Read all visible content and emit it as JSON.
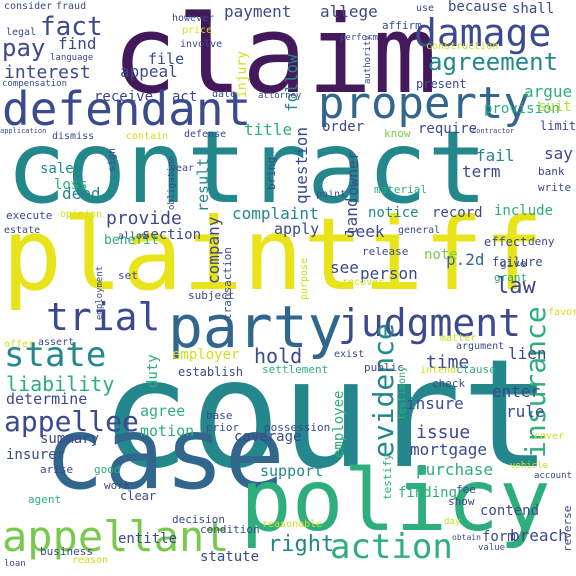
{
  "palette": {
    "purple": "#44195c",
    "indigo": "#3b4a8c",
    "blue": "#31668d",
    "teal": "#23878b",
    "green": "#2fae7d",
    "lime": "#7ac94f",
    "yellow": "#e8e419",
    "gold": "#cfe11c",
    "pale": "#b9dd2b"
  },
  "words": [
    {
      "text": "court",
      "size_rank": 1,
      "color": "teal"
    },
    {
      "text": "contract",
      "size_rank": 2,
      "color": "teal"
    },
    {
      "text": "plaintiff",
      "size_rank": 3,
      "color": "yellow"
    },
    {
      "text": "claim",
      "size_rank": 4,
      "color": "purple"
    },
    {
      "text": "case",
      "size_rank": 5,
      "color": "blue"
    },
    {
      "text": "policy",
      "size_rank": 6,
      "color": "green"
    },
    {
      "text": "party",
      "size_rank": 7,
      "color": "blue"
    },
    {
      "text": "defendant",
      "size_rank": 8,
      "color": "indigo"
    },
    {
      "text": "property",
      "size_rank": 9,
      "color": "blue"
    },
    {
      "text": "damage",
      "size_rank": 10,
      "color": "indigo"
    },
    {
      "text": "judgment",
      "size_rank": 11,
      "color": "indigo"
    },
    {
      "text": "trial",
      "size_rank": 12,
      "color": "indigo"
    },
    {
      "text": "state",
      "size_rank": 13,
      "color": "teal"
    },
    {
      "text": "appellant",
      "size_rank": 14,
      "color": "lime"
    },
    {
      "text": "action",
      "size_rank": 15,
      "color": "green"
    },
    {
      "text": "appellee",
      "size_rank": 16,
      "color": "indigo"
    },
    {
      "text": "agreement",
      "size_rank": 17,
      "color": "teal"
    },
    {
      "text": "insurance",
      "size_rank": 18,
      "color": "green"
    },
    {
      "text": "evidence",
      "size_rank": 19,
      "color": "teal"
    },
    {
      "text": "fact",
      "size_rank": 20,
      "color": "indigo"
    },
    {
      "text": "pay",
      "size_rank": 21,
      "color": "indigo"
    },
    {
      "text": "liability",
      "size_rank": 22,
      "color": "green"
    },
    {
      "text": "interest",
      "size_rank": 23,
      "color": "indigo"
    },
    {
      "text": "law",
      "size_rank": 24,
      "color": "indigo"
    },
    {
      "text": "right",
      "size_rank": 25,
      "color": "teal"
    },
    {
      "text": "hold",
      "size_rank": 26,
      "color": "indigo"
    },
    {
      "text": "find",
      "size_rank": 27,
      "color": "indigo"
    },
    {
      "text": "appeal",
      "size_rank": 28,
      "color": "indigo"
    },
    {
      "text": "file",
      "size_rank": 29,
      "color": "indigo"
    },
    {
      "text": "provide",
      "size_rank": 30,
      "color": "indigo"
    },
    {
      "text": "complaint",
      "size_rank": 31,
      "color": "teal"
    },
    {
      "text": "issue",
      "size_rank": 32,
      "color": "indigo"
    },
    {
      "text": "time",
      "size_rank": 33,
      "color": "indigo"
    },
    {
      "text": "allege",
      "size_rank": 34,
      "color": "indigo"
    },
    {
      "text": "payment",
      "size_rank": 35,
      "color": "indigo"
    },
    {
      "text": "because",
      "size_rank": 36,
      "color": "indigo"
    },
    {
      "text": "shall",
      "size_rank": 37,
      "color": "indigo"
    },
    {
      "text": "argue",
      "size_rank": 38,
      "color": "green"
    },
    {
      "text": "provision",
      "size_rank": 39,
      "color": "green"
    },
    {
      "text": "suit",
      "size_rank": 40,
      "color": "pale"
    },
    {
      "text": "term",
      "size_rank": 41,
      "color": "indigo"
    },
    {
      "text": "fail",
      "size_rank": 42,
      "color": "teal"
    },
    {
      "text": "say",
      "size_rank": 43,
      "color": "indigo"
    },
    {
      "text": "include",
      "size_rank": 44,
      "color": "green"
    },
    {
      "text": "record",
      "size_rank": 45,
      "color": "indigo"
    },
    {
      "text": "notice",
      "size_rank": 46,
      "color": "teal"
    },
    {
      "text": "seek",
      "size_rank": 47,
      "color": "indigo"
    },
    {
      "text": "apply",
      "size_rank": 48,
      "color": "indigo"
    },
    {
      "text": "section",
      "size_rank": 49,
      "color": "indigo"
    },
    {
      "text": "deed",
      "size_rank": 50,
      "color": "teal"
    },
    {
      "text": "sale",
      "size_rank": 51,
      "color": "teal"
    },
    {
      "text": "loss",
      "size_rank": 52,
      "color": "green"
    },
    {
      "text": "benefit",
      "size_rank": 53,
      "color": "green"
    },
    {
      "text": "see",
      "size_rank": 54,
      "color": "indigo"
    },
    {
      "text": "person",
      "size_rank": 55,
      "color": "indigo"
    },
    {
      "text": "p.2d",
      "size_rank": 56,
      "color": "blue"
    },
    {
      "text": "note",
      "size_rank": 57,
      "color": "lime"
    },
    {
      "text": "employer",
      "size_rank": 58,
      "color": "gold"
    },
    {
      "text": "lien",
      "size_rank": 59,
      "color": "indigo"
    },
    {
      "text": "determine",
      "size_rank": 60,
      "color": "indigo"
    },
    {
      "text": "agree",
      "size_rank": 61,
      "color": "green"
    },
    {
      "text": "motion",
      "size_rank": 62,
      "color": "green"
    },
    {
      "text": "summary",
      "size_rank": 63,
      "color": "indigo"
    },
    {
      "text": "insurer",
      "size_rank": 64,
      "color": "indigo"
    },
    {
      "text": "coverage",
      "size_rank": 65,
      "color": "indigo"
    },
    {
      "text": "insure",
      "size_rank": 66,
      "color": "indigo"
    },
    {
      "text": "mortgage",
      "size_rank": 67,
      "color": "indigo"
    },
    {
      "text": "enter",
      "size_rank": 68,
      "color": "indigo"
    },
    {
      "text": "rule",
      "size_rank": 69,
      "color": "indigo"
    },
    {
      "text": "purchase",
      "size_rank": 70,
      "color": "green"
    },
    {
      "text": "finding",
      "size_rank": 71,
      "color": "green"
    },
    {
      "text": "statute",
      "size_rank": 72,
      "color": "indigo"
    },
    {
      "text": "entitle",
      "size_rank": 73,
      "color": "indigo"
    },
    {
      "text": "breach",
      "size_rank": 74,
      "color": "indigo"
    },
    {
      "text": "form",
      "size_rank": 75,
      "color": "indigo"
    },
    {
      "text": "support",
      "size_rank": 76,
      "color": "teal"
    },
    {
      "text": "contend",
      "size_rank": 77,
      "color": "indigo"
    },
    {
      "text": "owner",
      "size_rank": 78,
      "color": "indigo"
    },
    {
      "text": "land",
      "size_rank": 79,
      "color": "indigo"
    },
    {
      "text": "question",
      "size_rank": 80,
      "color": "indigo"
    },
    {
      "text": "require",
      "size_rank": 81,
      "color": "indigo"
    },
    {
      "text": "order",
      "size_rank": 82,
      "color": "indigo"
    },
    {
      "text": "title",
      "size_rank": 83,
      "color": "green"
    },
    {
      "text": "follow",
      "size_rank": 84,
      "color": "teal"
    },
    {
      "text": "company",
      "size_rank": 85,
      "color": "indigo"
    },
    {
      "text": "result",
      "size_rank": 86,
      "color": "teal"
    },
    {
      "text": "duty",
      "size_rank": 87,
      "color": "green"
    },
    {
      "text": "employee",
      "size_rank": 88,
      "color": "green"
    },
    {
      "text": "receive",
      "size_rank": 89,
      "color": "indigo"
    },
    {
      "text": "act",
      "size_rank": 90,
      "color": "indigo"
    },
    {
      "text": "injury",
      "size_rank": 91,
      "color": "gold"
    },
    {
      "text": "release",
      "size_rank": 92,
      "color": "indigo"
    },
    {
      "text": "present",
      "size_rank": 93,
      "color": "indigo"
    },
    {
      "text": "effect",
      "size_rank": 94,
      "color": "indigo"
    },
    {
      "text": "deny",
      "size_rank": 95,
      "color": "indigo"
    },
    {
      "text": "failure",
      "size_rank": 96,
      "color": "indigo"
    },
    {
      "text": "give",
      "size_rank": 97,
      "color": "indigo"
    },
    {
      "text": "grant",
      "size_rank": 98,
      "color": "green"
    },
    {
      "text": "limit",
      "size_rank": 99,
      "color": "indigo"
    },
    {
      "text": "bank",
      "size_rank": 100,
      "color": "indigo"
    },
    {
      "text": "write",
      "size_rank": 101,
      "color": "indigo"
    },
    {
      "text": "know",
      "size_rank": 102,
      "color": "lime"
    },
    {
      "text": "material",
      "size_rank": 103,
      "color": "green"
    },
    {
      "text": "condition",
      "size_rank": 104,
      "color": "indigo"
    },
    {
      "text": "possession",
      "size_rank": 105,
      "color": "indigo"
    },
    {
      "text": "public",
      "size_rank": 106,
      "color": "indigo"
    },
    {
      "text": "clause",
      "size_rank": 107,
      "color": "green"
    },
    {
      "text": "argument",
      "size_rank": 108,
      "color": "indigo"
    },
    {
      "text": "establish",
      "size_rank": 109,
      "color": "indigo"
    },
    {
      "text": "settlement",
      "size_rank": 110,
      "color": "green"
    },
    {
      "text": "check",
      "size_rank": 111,
      "color": "indigo"
    },
    {
      "text": "testimony",
      "size_rank": 112,
      "color": "green"
    },
    {
      "text": "testify",
      "size_rank": 113,
      "color": "green"
    },
    {
      "text": "base",
      "size_rank": 114,
      "color": "indigo"
    },
    {
      "text": "prior",
      "size_rank": 115,
      "color": "indigo"
    },
    {
      "text": "decision",
      "size_rank": 116,
      "color": "indigo"
    },
    {
      "text": "reasonable",
      "size_rank": 117,
      "color": "gold"
    },
    {
      "text": "business",
      "size_rank": 118,
      "color": "indigo"
    },
    {
      "text": "clear",
      "size_rank": 119,
      "color": "indigo"
    },
    {
      "text": "agent",
      "size_rank": 120,
      "color": "green"
    },
    {
      "text": "arise",
      "size_rank": 121,
      "color": "indigo"
    },
    {
      "text": "good",
      "size_rank": 122,
      "color": "green"
    },
    {
      "text": "work",
      "size_rank": 123,
      "color": "indigo"
    },
    {
      "text": "offer",
      "size_rank": 124,
      "color": "gold"
    },
    {
      "text": "assert",
      "size_rank": 125,
      "color": "indigo"
    },
    {
      "text": "set",
      "size_rank": 126,
      "color": "indigo"
    },
    {
      "text": "execute",
      "size_rank": 127,
      "color": "indigo"
    },
    {
      "text": "opinion",
      "size_rank": 128,
      "color": "gold"
    },
    {
      "text": "estate",
      "size_rank": 129,
      "color": "indigo"
    },
    {
      "text": "general",
      "size_rank": 130,
      "color": "indigo"
    },
    {
      "text": "recover",
      "size_rank": 131,
      "color": "gold"
    },
    {
      "text": "purpose",
      "size_rank": 132,
      "color": "gold"
    },
    {
      "text": "subject",
      "size_rank": 133,
      "color": "indigo"
    },
    {
      "text": "transaction",
      "size_rank": 134,
      "color": "indigo"
    },
    {
      "text": "point",
      "size_rank": 135,
      "color": "indigo"
    },
    {
      "text": "bring",
      "size_rank": 136,
      "color": "indigo"
    },
    {
      "text": "year",
      "size_rank": 137,
      "color": "indigo"
    },
    {
      "text": "sign",
      "size_rank": 138,
      "color": "indigo"
    },
    {
      "text": "dismiss",
      "size_rank": 139,
      "color": "indigo"
    },
    {
      "text": "contain",
      "size_rank": 140,
      "color": "gold"
    },
    {
      "text": "defense",
      "size_rank": 141,
      "color": "indigo"
    },
    {
      "text": "date",
      "size_rank": 142,
      "color": "indigo"
    },
    {
      "text": "consider",
      "size_rank": 143,
      "color": "indigo"
    },
    {
      "text": "fraud",
      "size_rank": 144,
      "color": "indigo"
    },
    {
      "text": "legal",
      "size_rank": 145,
      "color": "indigo"
    },
    {
      "text": "language",
      "size_rank": 146,
      "color": "indigo"
    },
    {
      "text": "however",
      "size_rank": 147,
      "color": "indigo"
    },
    {
      "text": "involve",
      "size_rank": 148,
      "color": "indigo"
    },
    {
      "text": "price",
      "size_rank": 149,
      "color": "gold"
    },
    {
      "text": "use",
      "size_rank": 150,
      "color": "indigo"
    },
    {
      "text": "affirm",
      "size_rank": 151,
      "color": "indigo"
    },
    {
      "text": "perform",
      "size_rank": 152,
      "color": "indigo"
    },
    {
      "text": "construction",
      "size_rank": 153,
      "color": "gold"
    },
    {
      "text": "compensation",
      "size_rank": 154,
      "color": "indigo"
    },
    {
      "text": "attorney",
      "size_rank": 155,
      "color": "indigo"
    },
    {
      "text": "authority",
      "size_rank": 156,
      "color": "indigo"
    },
    {
      "text": "application",
      "size_rank": 157,
      "color": "indigo"
    },
    {
      "text": "contractor",
      "size_rank": 158,
      "color": "indigo"
    },
    {
      "text": "obligation",
      "size_rank": 159,
      "color": "indigo"
    },
    {
      "text": "allow",
      "size_rank": 160,
      "color": "indigo"
    },
    {
      "text": "employment",
      "size_rank": 161,
      "color": "indigo"
    },
    {
      "text": "fee",
      "size_rank": 162,
      "color": "indigo"
    },
    {
      "text": "show",
      "size_rank": 163,
      "color": "indigo"
    },
    {
      "text": "day",
      "size_rank": 164,
      "color": "gold"
    },
    {
      "text": "account",
      "size_rank": 165,
      "color": "indigo"
    },
    {
      "text": "vehicle",
      "size_rank": 166,
      "color": "gold"
    },
    {
      "text": "cover",
      "size_rank": 167,
      "color": "gold"
    },
    {
      "text": "favor",
      "size_rank": 168,
      "color": "gold"
    },
    {
      "text": "reverse",
      "size_rank": 169,
      "color": "indigo"
    },
    {
      "text": "value",
      "size_rank": 170,
      "color": "indigo"
    },
    {
      "text": "obtain",
      "size_rank": 171,
      "color": "indigo"
    },
    {
      "text": "loan",
      "size_rank": 172,
      "color": "indigo"
    },
    {
      "text": "reason",
      "size_rank": 173,
      "color": "gold"
    },
    {
      "text": "exist",
      "size_rank": 174,
      "color": "indigo"
    },
    {
      "text": "matter",
      "size_rank": 175,
      "color": "gold"
    },
    {
      "text": "intend",
      "size_rank": 176,
      "color": "gold"
    }
  ]
}
